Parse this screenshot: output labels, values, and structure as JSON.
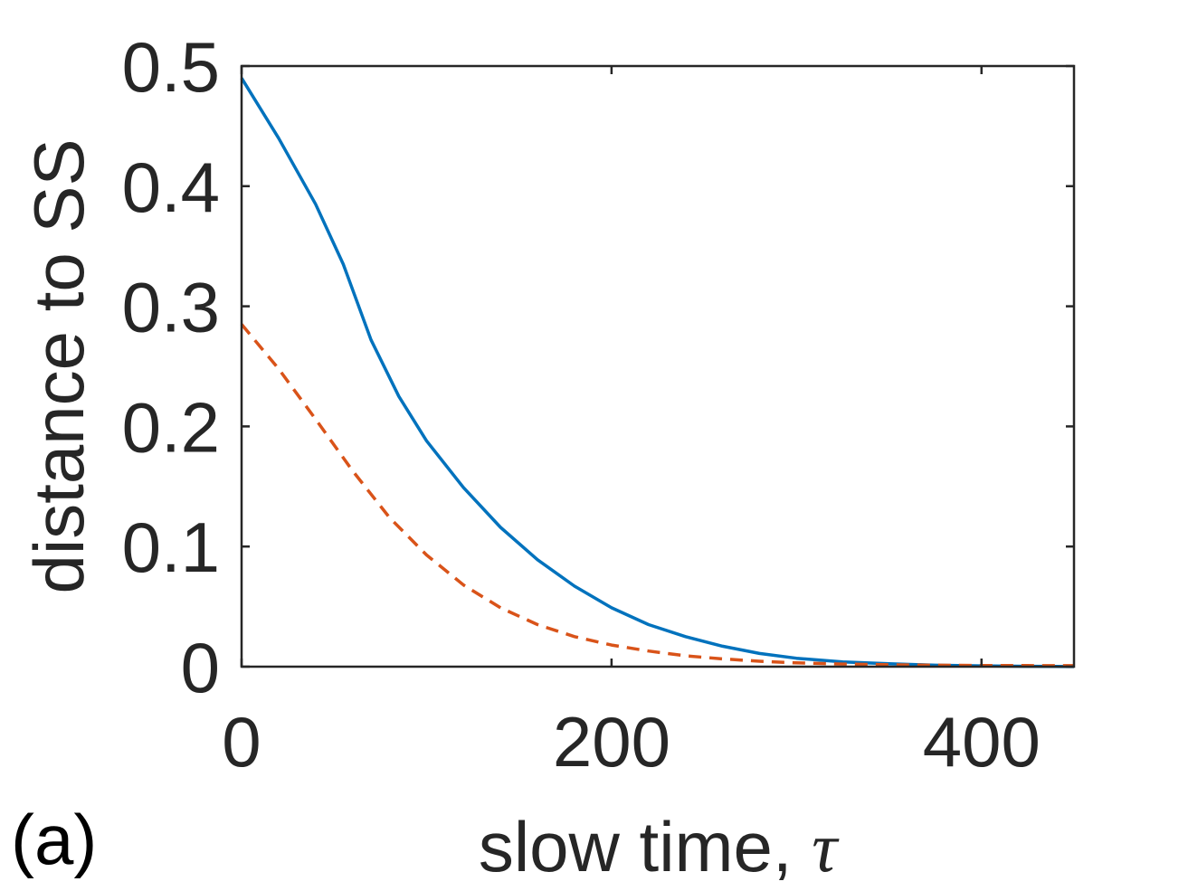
{
  "panel_label": "(a)",
  "chart_data": {
    "type": "line",
    "title": "",
    "xlabel": "slow time, ",
    "xlabel_symbol": "τ",
    "ylabel": "distance to SS",
    "xlim": [
      0,
      450
    ],
    "ylim": [
      0,
      0.5
    ],
    "xticks": [
      0,
      200,
      400
    ],
    "xtick_labels": [
      "0",
      "200",
      "400"
    ],
    "yticks": [
      0,
      0.1,
      0.2,
      0.3,
      0.4,
      0.5
    ],
    "ytick_labels": [
      "0",
      "0.1",
      "0.2",
      "0.3",
      "0.4",
      "0.5"
    ],
    "grid": false,
    "legend": false,
    "series": [
      {
        "style": "solid",
        "color": "#0072BD",
        "x": [
          0,
          20,
          40,
          55,
          70,
          85,
          100,
          120,
          140,
          160,
          180,
          200,
          220,
          240,
          260,
          280,
          300,
          325,
          350,
          375,
          400,
          425,
          450
        ],
        "y": [
          0.49,
          0.44,
          0.385,
          0.335,
          0.272,
          0.225,
          0.188,
          0.149,
          0.116,
          0.089,
          0.067,
          0.049,
          0.035,
          0.025,
          0.017,
          0.011,
          0.007,
          0.004,
          0.0025,
          0.0012,
          0.0007,
          0.0003,
          0.0001
        ]
      },
      {
        "style": "dashed",
        "color": "#D95319",
        "x": [
          0,
          20,
          40,
          60,
          80,
          100,
          120,
          140,
          160,
          180,
          200,
          220,
          240,
          260,
          280,
          300,
          325,
          350,
          375,
          400,
          425,
          450
        ],
        "y": [
          0.285,
          0.248,
          0.206,
          0.163,
          0.124,
          0.093,
          0.068,
          0.049,
          0.035,
          0.025,
          0.018,
          0.013,
          0.009,
          0.0065,
          0.0045,
          0.0032,
          0.0022,
          0.0016,
          0.0012,
          0.001,
          0.0009,
          0.0008
        ]
      }
    ]
  }
}
